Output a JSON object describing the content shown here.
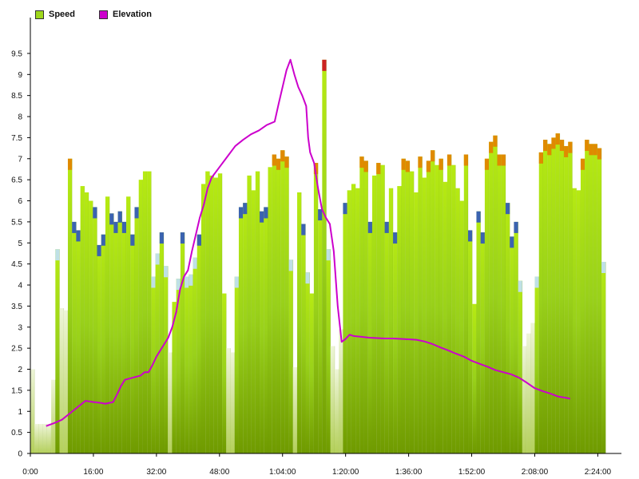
{
  "legend": {
    "speed_label": "Speed",
    "elevation_label": "Elevation"
  },
  "colors": {
    "speed": "#9fd81c",
    "speed_dark": "#6f9a00",
    "elevation": "#cc00cc",
    "cap_low": "#bfe0e6",
    "cap_mid": "#3b63b0",
    "cap_high": "#e08a00",
    "cap_peak": "#cc2222"
  },
  "chart_data": {
    "type": "bar",
    "series": [
      {
        "name": "Speed",
        "values": [
          2.0,
          0.7,
          0.7,
          0.7,
          0.7,
          1.75,
          4.85,
          3.45,
          3.4,
          7.0,
          5.5,
          5.3,
          6.35,
          6.2,
          6.0,
          5.85,
          4.95,
          5.2,
          6.1,
          5.7,
          5.5,
          5.75,
          5.5,
          6.1,
          5.2,
          5.85,
          6.5,
          6.7,
          6.7,
          4.2,
          4.75,
          5.25,
          4.45,
          2.4,
          3.6,
          4.15,
          5.25,
          4.2,
          4.25,
          4.65,
          5.2,
          6.4,
          6.7,
          6.6,
          6.55,
          6.65,
          3.8,
          2.5,
          2.4,
          4.2,
          5.85,
          5.95,
          6.6,
          6.25,
          6.7,
          5.75,
          5.85,
          6.8,
          7.1,
          7.0,
          7.2,
          7.05,
          4.6,
          2.05,
          6.2,
          5.45,
          4.3,
          3.8,
          6.9,
          5.8,
          9.35,
          4.85,
          2.55,
          2.0,
          2.95,
          5.95,
          6.25,
          6.4,
          6.3,
          7.05,
          6.95,
          5.5,
          6.6,
          6.9,
          6.85,
          5.5,
          6.3,
          5.25,
          6.35,
          7.0,
          6.95,
          6.7,
          6.2,
          7.05,
          6.55,
          6.95,
          7.2,
          6.85,
          7.0,
          6.45,
          7.1,
          6.85,
          6.3,
          6.0,
          7.1,
          5.3,
          3.55,
          5.75,
          5.25,
          7.0,
          7.4,
          7.55,
          7.1,
          7.1,
          5.95,
          5.15,
          5.5,
          4.1,
          2.55,
          2.85,
          3.1,
          4.2,
          7.15,
          7.45,
          7.35,
          7.5,
          7.6,
          7.45,
          7.3,
          7.4,
          6.3,
          6.25,
          7.0,
          7.45,
          7.35,
          7.35,
          7.25,
          4.55
        ]
      },
      {
        "name": "Elevation"
      }
    ],
    "x_tick_labels": [
      "0:00",
      "16:00",
      "32:00",
      "48:00",
      "1:04:00",
      "1:20:00",
      "1:36:00",
      "1:52:00",
      "2:08:00",
      "2:24:00"
    ],
    "x_tick_minutes": [
      0,
      16,
      32,
      48,
      64,
      80,
      96,
      112,
      128,
      144
    ],
    "x_range_minutes": [
      0,
      150
    ],
    "y_tick_labels": [
      "0",
      "0.5",
      "1",
      "1.5",
      "2",
      "2.5",
      "3",
      "3.5",
      "4",
      "4.5",
      "5",
      "5.5",
      "6",
      "6.5",
      "7",
      "7.5",
      "8",
      "8.5",
      "9",
      "9.5"
    ],
    "ylim": [
      0,
      10.2
    ],
    "speed_x_range_minutes": [
      0,
      146
    ],
    "elevation_points": [
      [
        4,
        0.65
      ],
      [
        6,
        0.72
      ],
      [
        8,
        0.8
      ],
      [
        10,
        0.95
      ],
      [
        12,
        1.1
      ],
      [
        14,
        1.25
      ],
      [
        16,
        1.22
      ],
      [
        18,
        1.2
      ],
      [
        19,
        1.18
      ],
      [
        21,
        1.22
      ],
      [
        22,
        1.4
      ],
      [
        23,
        1.6
      ],
      [
        24,
        1.75
      ],
      [
        26,
        1.8
      ],
      [
        28,
        1.85
      ],
      [
        29,
        1.93
      ],
      [
        30,
        1.93
      ],
      [
        31,
        2.1
      ],
      [
        32,
        2.3
      ],
      [
        33,
        2.45
      ],
      [
        34,
        2.6
      ],
      [
        35,
        2.75
      ],
      [
        36,
        3.0
      ],
      [
        37,
        3.35
      ],
      [
        38,
        3.9
      ],
      [
        39,
        4.2
      ],
      [
        40,
        4.35
      ],
      [
        41,
        4.8
      ],
      [
        42,
        5.2
      ],
      [
        43,
        5.6
      ],
      [
        44,
        5.9
      ],
      [
        45,
        6.3
      ],
      [
        46,
        6.55
      ],
      [
        48,
        6.8
      ],
      [
        50,
        7.05
      ],
      [
        52,
        7.3
      ],
      [
        54,
        7.45
      ],
      [
        56,
        7.58
      ],
      [
        58,
        7.67
      ],
      [
        60,
        7.8
      ],
      [
        62,
        7.88
      ],
      [
        63,
        8.3
      ],
      [
        64,
        8.7
      ],
      [
        65,
        9.1
      ],
      [
        66,
        9.35
      ],
      [
        67,
        9.0
      ],
      [
        68,
        8.7
      ],
      [
        69,
        8.5
      ],
      [
        70,
        8.25
      ],
      [
        70.5,
        7.5
      ],
      [
        71,
        7.15
      ],
      [
        72,
        6.9
      ],
      [
        73,
        6.3
      ],
      [
        74,
        5.8
      ],
      [
        75,
        5.6
      ],
      [
        76,
        5.45
      ],
      [
        77,
        4.8
      ],
      [
        78,
        3.5
      ],
      [
        79,
        2.65
      ],
      [
        80,
        2.72
      ],
      [
        81,
        2.82
      ],
      [
        82,
        2.79
      ],
      [
        84,
        2.77
      ],
      [
        86,
        2.75
      ],
      [
        88,
        2.74
      ],
      [
        90,
        2.73
      ],
      [
        92,
        2.73
      ],
      [
        94,
        2.72
      ],
      [
        96,
        2.71
      ],
      [
        98,
        2.7
      ],
      [
        100,
        2.66
      ],
      [
        102,
        2.6
      ],
      [
        104,
        2.52
      ],
      [
        106,
        2.45
      ],
      [
        108,
        2.37
      ],
      [
        110,
        2.3
      ],
      [
        112,
        2.2
      ],
      [
        114,
        2.13
      ],
      [
        116,
        2.06
      ],
      [
        118,
        1.98
      ],
      [
        120,
        1.93
      ],
      [
        122,
        1.88
      ],
      [
        124,
        1.8
      ],
      [
        126,
        1.68
      ],
      [
        128,
        1.55
      ],
      [
        130,
        1.48
      ],
      [
        132,
        1.42
      ],
      [
        134,
        1.35
      ],
      [
        136,
        1.32
      ],
      [
        137,
        1.3
      ]
    ]
  }
}
